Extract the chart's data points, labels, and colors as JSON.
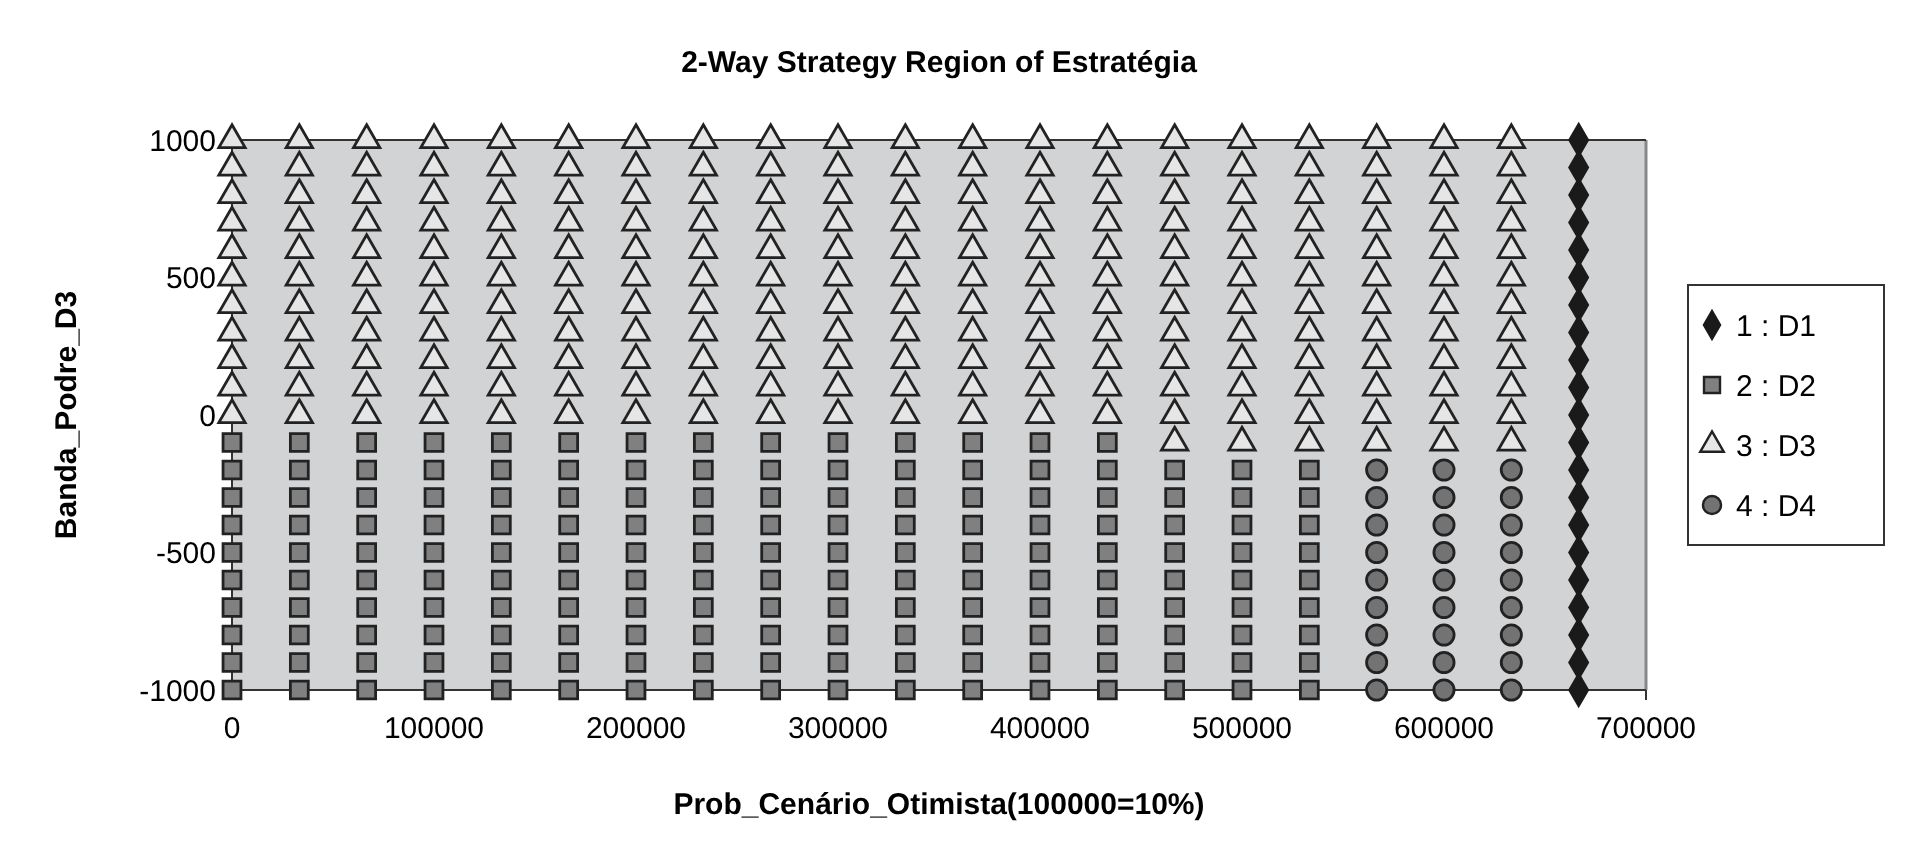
{
  "chart_data": {
    "type": "scatter",
    "title": "2-Way Strategy Region of Estratégia",
    "xlabel": "Prob_Cenário_Otimista(100000=10%)",
    "ylabel": "Banda_Podre_D3",
    "xlim": [
      0,
      700000
    ],
    "xticks": [
      0,
      100000,
      200000,
      300000,
      400000,
      500000,
      600000,
      700000
    ],
    "ylim": [
      -1000,
      1000
    ],
    "yticks": [
      -1000,
      -500,
      0,
      500,
      1000
    ],
    "legend": "right",
    "grid": false,
    "series": [
      {
        "name": "1 : D1",
        "color": "#1a1a1a",
        "marker": "diamond",
        "x": [
          666667,
          666667,
          666667,
          666667,
          666667,
          666667,
          666667,
          666667,
          666667,
          666667,
          666667,
          666667,
          666667,
          666667,
          666667,
          666667,
          666667,
          666667,
          666667,
          666667,
          666667
        ],
        "values": [
          -1000,
          -900,
          -800,
          -700,
          -600,
          -500,
          -400,
          -300,
          -200,
          -100,
          0,
          100,
          200,
          300,
          400,
          500,
          600,
          700,
          800,
          900,
          1000
        ]
      },
      {
        "name": "2 : D2",
        "color": "#808080",
        "marker": "square",
        "x": [
          0,
          0,
          0,
          0,
          0,
          0,
          0,
          0,
          0,
          0,
          33333,
          33333,
          33333,
          33333,
          33333,
          33333,
          33333,
          33333,
          33333,
          33333,
          66667,
          66667,
          66667,
          66667,
          66667,
          66667,
          66667,
          66667,
          66667,
          66667,
          100000,
          100000,
          100000,
          100000,
          100000,
          100000,
          100000,
          100000,
          100000,
          100000,
          133333,
          133333,
          133333,
          133333,
          133333,
          133333,
          133333,
          133333,
          133333,
          133333,
          166667,
          166667,
          166667,
          166667,
          166667,
          166667,
          166667,
          166667,
          166667,
          166667,
          200000,
          200000,
          200000,
          200000,
          200000,
          200000,
          200000,
          200000,
          200000,
          200000,
          233333,
          233333,
          233333,
          233333,
          233333,
          233333,
          233333,
          233333,
          233333,
          233333,
          266667,
          266667,
          266667,
          266667,
          266667,
          266667,
          266667,
          266667,
          266667,
          266667,
          300000,
          300000,
          300000,
          300000,
          300000,
          300000,
          300000,
          300000,
          300000,
          300000,
          333333,
          333333,
          333333,
          333333,
          333333,
          333333,
          333333,
          333333,
          333333,
          333333,
          366667,
          366667,
          366667,
          366667,
          366667,
          366667,
          366667,
          366667,
          366667,
          366667,
          400000,
          400000,
          400000,
          400000,
          400000,
          400000,
          400000,
          400000,
          400000,
          400000,
          433333,
          433333,
          433333,
          433333,
          433333,
          433333,
          433333,
          433333,
          433333,
          433333,
          466667,
          466667,
          466667,
          466667,
          466667,
          466667,
          466667,
          466667,
          466667,
          500000,
          500000,
          500000,
          500000,
          500000,
          500000,
          500000,
          500000,
          500000,
          533333,
          533333,
          533333,
          533333,
          533333,
          533333,
          533333,
          533333,
          533333
        ],
        "values": [
          -1000,
          -900,
          -800,
          -700,
          -600,
          -500,
          -400,
          -300,
          -200,
          -100,
          -1000,
          -900,
          -800,
          -700,
          -600,
          -500,
          -400,
          -300,
          -200,
          -100,
          -1000,
          -900,
          -800,
          -700,
          -600,
          -500,
          -400,
          -300,
          -200,
          -100,
          -1000,
          -900,
          -800,
          -700,
          -600,
          -500,
          -400,
          -300,
          -200,
          -100,
          -1000,
          -900,
          -800,
          -700,
          -600,
          -500,
          -400,
          -300,
          -200,
          -100,
          -1000,
          -900,
          -800,
          -700,
          -600,
          -500,
          -400,
          -300,
          -200,
          -100,
          -1000,
          -900,
          -800,
          -700,
          -600,
          -500,
          -400,
          -300,
          -200,
          -100,
          -1000,
          -900,
          -800,
          -700,
          -600,
          -500,
          -400,
          -300,
          -200,
          -100,
          -1000,
          -900,
          -800,
          -700,
          -600,
          -500,
          -400,
          -300,
          -200,
          -100,
          -1000,
          -900,
          -800,
          -700,
          -600,
          -500,
          -400,
          -300,
          -200,
          -100,
          -1000,
          -900,
          -800,
          -700,
          -600,
          -500,
          -400,
          -300,
          -200,
          -100,
          -1000,
          -900,
          -800,
          -700,
          -600,
          -500,
          -400,
          -300,
          -200,
          -100,
          -1000,
          -900,
          -800,
          -700,
          -600,
          -500,
          -400,
          -300,
          -200,
          -100,
          -1000,
          -900,
          -800,
          -700,
          -600,
          -500,
          -400,
          -300,
          -200,
          -100,
          -1000,
          -900,
          -800,
          -700,
          -600,
          -500,
          -400,
          -300,
          -200,
          -1000,
          -900,
          -800,
          -700,
          -600,
          -500,
          -400,
          -300,
          -200,
          -1000,
          -900,
          -800,
          -700,
          -600,
          -500,
          -400,
          -300,
          -200
        ]
      },
      {
        "name": "3 : D3",
        "color": "#e6e6e6",
        "marker": "triangle",
        "x": [
          0,
          0,
          0,
          0,
          0,
          0,
          0,
          0,
          0,
          0,
          0,
          33333,
          33333,
          33333,
          33333,
          33333,
          33333,
          33333,
          33333,
          33333,
          33333,
          33333,
          66667,
          66667,
          66667,
          66667,
          66667,
          66667,
          66667,
          66667,
          66667,
          66667,
          66667,
          100000,
          100000,
          100000,
          100000,
          100000,
          100000,
          100000,
          100000,
          100000,
          100000,
          100000,
          133333,
          133333,
          133333,
          133333,
          133333,
          133333,
          133333,
          133333,
          133333,
          133333,
          133333,
          166667,
          166667,
          166667,
          166667,
          166667,
          166667,
          166667,
          166667,
          166667,
          166667,
          166667,
          200000,
          200000,
          200000,
          200000,
          200000,
          200000,
          200000,
          200000,
          200000,
          200000,
          200000,
          233333,
          233333,
          233333,
          233333,
          233333,
          233333,
          233333,
          233333,
          233333,
          233333,
          233333,
          266667,
          266667,
          266667,
          266667,
          266667,
          266667,
          266667,
          266667,
          266667,
          266667,
          266667,
          300000,
          300000,
          300000,
          300000,
          300000,
          300000,
          300000,
          300000,
          300000,
          300000,
          300000,
          333333,
          333333,
          333333,
          333333,
          333333,
          333333,
          333333,
          333333,
          333333,
          333333,
          333333,
          366667,
          366667,
          366667,
          366667,
          366667,
          366667,
          366667,
          366667,
          366667,
          366667,
          366667,
          400000,
          400000,
          400000,
          400000,
          400000,
          400000,
          400000,
          400000,
          400000,
          400000,
          400000,
          433333,
          433333,
          433333,
          433333,
          433333,
          433333,
          433333,
          433333,
          433333,
          433333,
          433333,
          466667,
          466667,
          466667,
          466667,
          466667,
          466667,
          466667,
          466667,
          466667,
          466667,
          466667,
          466667,
          500000,
          500000,
          500000,
          500000,
          500000,
          500000,
          500000,
          500000,
          500000,
          500000,
          500000,
          500000,
          533333,
          533333,
          533333,
          533333,
          533333,
          533333,
          533333,
          533333,
          533333,
          533333,
          533333,
          533333,
          566667,
          566667,
          566667,
          566667,
          566667,
          566667,
          566667,
          566667,
          566667,
          566667,
          566667,
          566667,
          600000,
          600000,
          600000,
          600000,
          600000,
          600000,
          600000,
          600000,
          600000,
          600000,
          600000,
          600000,
          633333,
          633333,
          633333,
          633333,
          633333,
          633333,
          633333,
          633333,
          633333,
          633333,
          633333,
          633333
        ],
        "values": [
          0,
          100,
          200,
          300,
          400,
          500,
          600,
          700,
          800,
          900,
          1000,
          0,
          100,
          200,
          300,
          400,
          500,
          600,
          700,
          800,
          900,
          1000,
          0,
          100,
          200,
          300,
          400,
          500,
          600,
          700,
          800,
          900,
          1000,
          0,
          100,
          200,
          300,
          400,
          500,
          600,
          700,
          800,
          900,
          1000,
          0,
          100,
          200,
          300,
          400,
          500,
          600,
          700,
          800,
          900,
          1000,
          0,
          100,
          200,
          300,
          400,
          500,
          600,
          700,
          800,
          900,
          1000,
          0,
          100,
          200,
          300,
          400,
          500,
          600,
          700,
          800,
          900,
          1000,
          0,
          100,
          200,
          300,
          400,
          500,
          600,
          700,
          800,
          900,
          1000,
          0,
          100,
          200,
          300,
          400,
          500,
          600,
          700,
          800,
          900,
          1000,
          0,
          100,
          200,
          300,
          400,
          500,
          600,
          700,
          800,
          900,
          1000,
          0,
          100,
          200,
          300,
          400,
          500,
          600,
          700,
          800,
          900,
          1000,
          0,
          100,
          200,
          300,
          400,
          500,
          600,
          700,
          800,
          900,
          1000,
          0,
          100,
          200,
          300,
          400,
          500,
          600,
          700,
          800,
          900,
          1000,
          0,
          100,
          200,
          300,
          400,
          500,
          600,
          700,
          800,
          900,
          1000,
          -100,
          0,
          100,
          200,
          300,
          400,
          500,
          600,
          700,
          800,
          900,
          1000,
          -100,
          0,
          100,
          200,
          300,
          400,
          500,
          600,
          700,
          800,
          900,
          1000,
          -100,
          0,
          100,
          200,
          300,
          400,
          500,
          600,
          700,
          800,
          900,
          1000,
          -100,
          0,
          100,
          200,
          300,
          400,
          500,
          600,
          700,
          800,
          900,
          1000,
          -100,
          0,
          100,
          200,
          300,
          400,
          500,
          600,
          700,
          800,
          900,
          1000,
          -100,
          0,
          100,
          200,
          300,
          400,
          500,
          600,
          700,
          800,
          900,
          1000
        ]
      },
      {
        "name": "4 : D4",
        "color": "#737373",
        "marker": "circle",
        "x": [
          566667,
          566667,
          566667,
          566667,
          566667,
          566667,
          566667,
          566667,
          566667,
          600000,
          600000,
          600000,
          600000,
          600000,
          600000,
          600000,
          600000,
          600000,
          633333,
          633333,
          633333,
          633333,
          633333,
          633333,
          633333,
          633333,
          633333
        ],
        "values": [
          -1000,
          -900,
          -800,
          -700,
          -600,
          -500,
          -400,
          -300,
          -200,
          -1000,
          -900,
          -800,
          -700,
          -600,
          -500,
          -400,
          -300,
          -200,
          -1000,
          -900,
          -800,
          -700,
          -600,
          -500,
          -400,
          -300,
          -200
        ]
      }
    ]
  }
}
